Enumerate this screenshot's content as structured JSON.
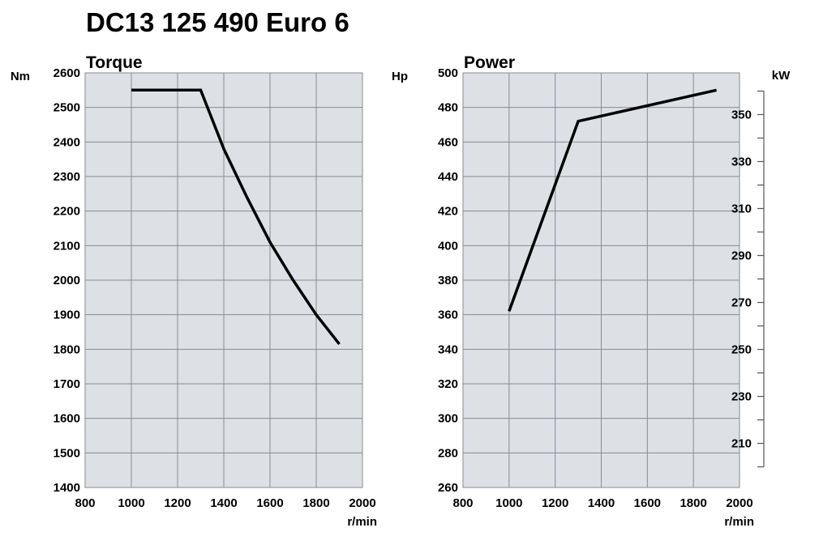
{
  "title": "DC13 125 490 Euro 6",
  "colors": {
    "plot_background": "#dde1e6",
    "grid": "#8a8a8a",
    "line": "#000000"
  },
  "chart_data": [
    {
      "type": "line",
      "title": "Torque",
      "ylabel": "Nm",
      "xlabel": "r/min",
      "xlim": [
        800,
        2000
      ],
      "ylim": [
        1400,
        2600
      ],
      "x_ticks": [
        800,
        1000,
        1200,
        1400,
        1600,
        1800,
        2000
      ],
      "y_ticks": [
        1400,
        1500,
        1600,
        1700,
        1800,
        1900,
        2000,
        2100,
        2200,
        2300,
        2400,
        2500,
        2600
      ],
      "grid": true,
      "series": [
        {
          "x": [
            1000,
            1300,
            1400,
            1500,
            1600,
            1700,
            1800,
            1900
          ],
          "y": [
            2550,
            2550,
            2380,
            2240,
            2110,
            2000,
            1900,
            1815
          ]
        }
      ]
    },
    {
      "type": "line",
      "title": "Power",
      "ylabel": "Hp",
      "ylabel_right": "kW",
      "xlabel": "r/min",
      "xlim": [
        800,
        2000
      ],
      "ylim": [
        260,
        500
      ],
      "x_ticks": [
        800,
        1000,
        1200,
        1400,
        1600,
        1800,
        2000
      ],
      "y_ticks": [
        260,
        280,
        300,
        320,
        340,
        360,
        380,
        400,
        420,
        440,
        460,
        480,
        500
      ],
      "y2_ticks": [
        210,
        230,
        250,
        270,
        290,
        310,
        330,
        350
      ],
      "y2_minor_ticks": [
        200,
        220,
        240,
        260,
        280,
        300,
        320,
        340,
        360
      ],
      "grid": true,
      "series": [
        {
          "x": [
            1000,
            1300,
            1900
          ],
          "y": [
            362,
            472,
            490
          ]
        }
      ]
    }
  ]
}
